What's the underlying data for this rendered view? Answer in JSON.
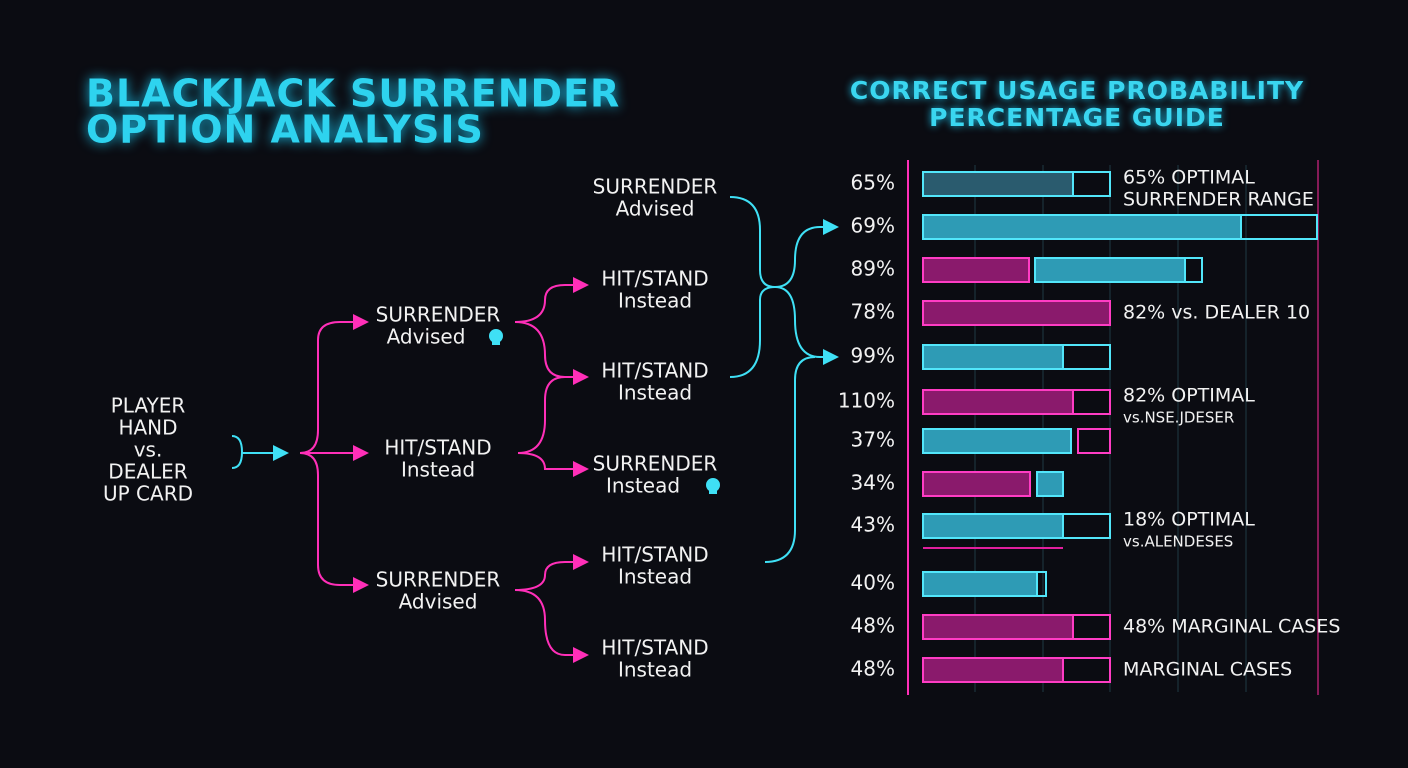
{
  "title": [
    "BLACKJACK SURRENDER",
    "OPTION ANALYSIS"
  ],
  "guide_title": [
    "CORRECT USAGE PROBABILITY",
    "PERCENTAGE GUIDE"
  ],
  "tree": {
    "nodes": [
      {
        "lines": [
          "PLAYER",
          "HAND",
          "vs.",
          "DEALER",
          "UP CARD"
        ]
      },
      {
        "lines": [
          "SURRENDER",
          "Advised"
        ]
      },
      {
        "lines": [
          "HIT/STAND",
          "Instead"
        ]
      },
      {
        "lines": [
          "SURRENDER",
          "Advised"
        ]
      },
      {
        "lines": [
          "SURRENDER",
          "Advised"
        ]
      },
      {
        "lines": [
          "HIT/STAND",
          "Instead"
        ]
      },
      {
        "lines": [
          "HIT/STAND",
          "Instead"
        ]
      },
      {
        "lines": [
          "SURRENDER",
          "Instead"
        ]
      },
      {
        "lines": [
          "HIT/STAND",
          "Instead"
        ]
      },
      {
        "lines": [
          "HIT/STAND",
          "Instead"
        ]
      }
    ]
  },
  "rows": [
    {
      "percent": "65%",
      "note": [
        "65% OPTIMAL",
        "SURRENDER RANGE"
      ]
    },
    {
      "percent": "69%"
    },
    {
      "percent": "89%"
    },
    {
      "percent": "78%",
      "note": [
        "82% vs. DEALER 10"
      ]
    },
    {
      "percent": "99%"
    },
    {
      "percent": "110%",
      "note": [
        "82% OPTIMAL",
        "vs.NSE.JDESER"
      ]
    },
    {
      "percent": "37%"
    },
    {
      "percent": "34%"
    },
    {
      "percent": "43%",
      "note": [
        "18% OPTIMAL",
        "vs.ALENDESES"
      ]
    },
    {
      "percent": "40%"
    },
    {
      "percent": "48%",
      "note": [
        "48% MARGINAL CASES"
      ]
    },
    {
      "percent": "48%",
      "note": [
        "MARGINAL CASES"
      ]
    }
  ]
}
